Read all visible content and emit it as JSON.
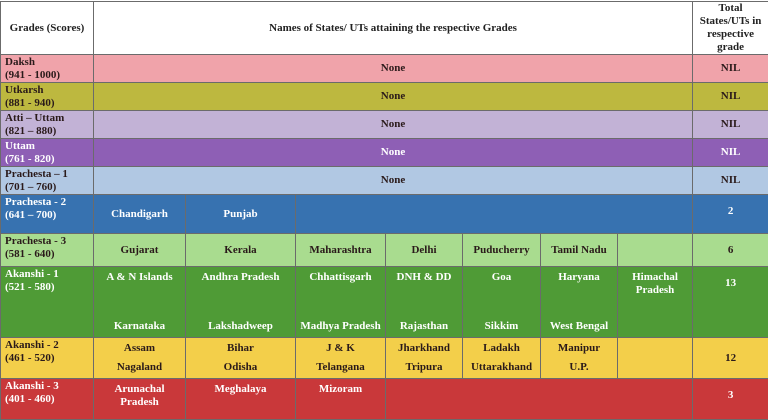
{
  "header": {
    "grades": "Grades (Scores)",
    "names": "Names of States/ UTs attaining the respective Grades",
    "total": "Total States/UTs in respective grade"
  },
  "rows": [
    {
      "grade": "Daksh",
      "range": "(941 - 1000)",
      "color": "#f0a3aa",
      "text": "dark-text",
      "none": "None",
      "states": [],
      "total": "NIL"
    },
    {
      "grade": "Utkarsh",
      "range": "(881 - 940)",
      "color": "#bdb83f",
      "text": "dark-text",
      "none": "None",
      "states": [],
      "total": "NIL"
    },
    {
      "grade": "Atti – Uttam",
      "range": "(821 – 880)",
      "color": "#c2b2d6",
      "text": "dark-text",
      "none": "None",
      "states": [],
      "total": "NIL"
    },
    {
      "grade": "Uttam",
      "range": "(761 - 820)",
      "color": "#8e5fb5",
      "text": "light-text",
      "none": "None",
      "states": [],
      "total": "NIL"
    },
    {
      "grade": "Prachesta – 1",
      "range": "(701 – 760)",
      "color": "#b1c8e3",
      "text": "dark-text",
      "none": "None",
      "states": [],
      "total": "NIL"
    },
    {
      "grade": "Prachesta - 2",
      "range": "(641 – 700)",
      "color": "#3772b0",
      "text": "light-text",
      "states": [
        [
          "Chandigarh"
        ],
        [
          "Punjab"
        ]
      ],
      "total": "2"
    },
    {
      "grade": "Prachesta - 3",
      "range": "(581 - 640)",
      "color": "#a9dc8f",
      "text": "dark-text",
      "states": [
        [
          "Gujarat"
        ],
        [
          "Kerala"
        ],
        [
          "Maharashtra"
        ],
        [
          "Delhi"
        ],
        [
          "Puducherry"
        ],
        [
          "Tamil Nadu"
        ],
        []
      ],
      "total": "6"
    },
    {
      "grade": "Akanshi - 1",
      "range": "(521 - 580)",
      "color": "#4f9b36",
      "text": "light-text",
      "states": [
        [
          "A & N Islands",
          "Karnataka"
        ],
        [
          "Andhra Pradesh",
          "Lakshadweep"
        ],
        [
          "Chhattisgarh",
          "Madhya Pradesh"
        ],
        [
          "DNH & DD",
          "Rajasthan"
        ],
        [
          "Goa",
          "Sikkim"
        ],
        [
          "Haryana",
          "West Bengal"
        ],
        [
          "Himachal Pradesh"
        ]
      ],
      "total": "13"
    },
    {
      "grade": "Akanshi - 2",
      "range": "(461 - 520)",
      "color": "#f3cf4a",
      "text": "dark-text",
      "states": [
        [
          "Assam",
          "Nagaland"
        ],
        [
          "Bihar",
          "Odisha"
        ],
        [
          "J & K",
          "Telangana"
        ],
        [
          "Jharkhand",
          "Tripura"
        ],
        [
          "Ladakh",
          "Uttarakhand"
        ],
        [
          "Manipur",
          "U.P."
        ],
        []
      ],
      "total": "12"
    },
    {
      "grade": "Akanshi - 3",
      "range": "(401 - 460)",
      "color": "#c9383a",
      "text": "light-text",
      "states": [
        [
          "Arunachal Pradesh"
        ],
        [
          "Meghalaya"
        ],
        [
          "Mizoram"
        ]
      ],
      "total": "3"
    }
  ]
}
